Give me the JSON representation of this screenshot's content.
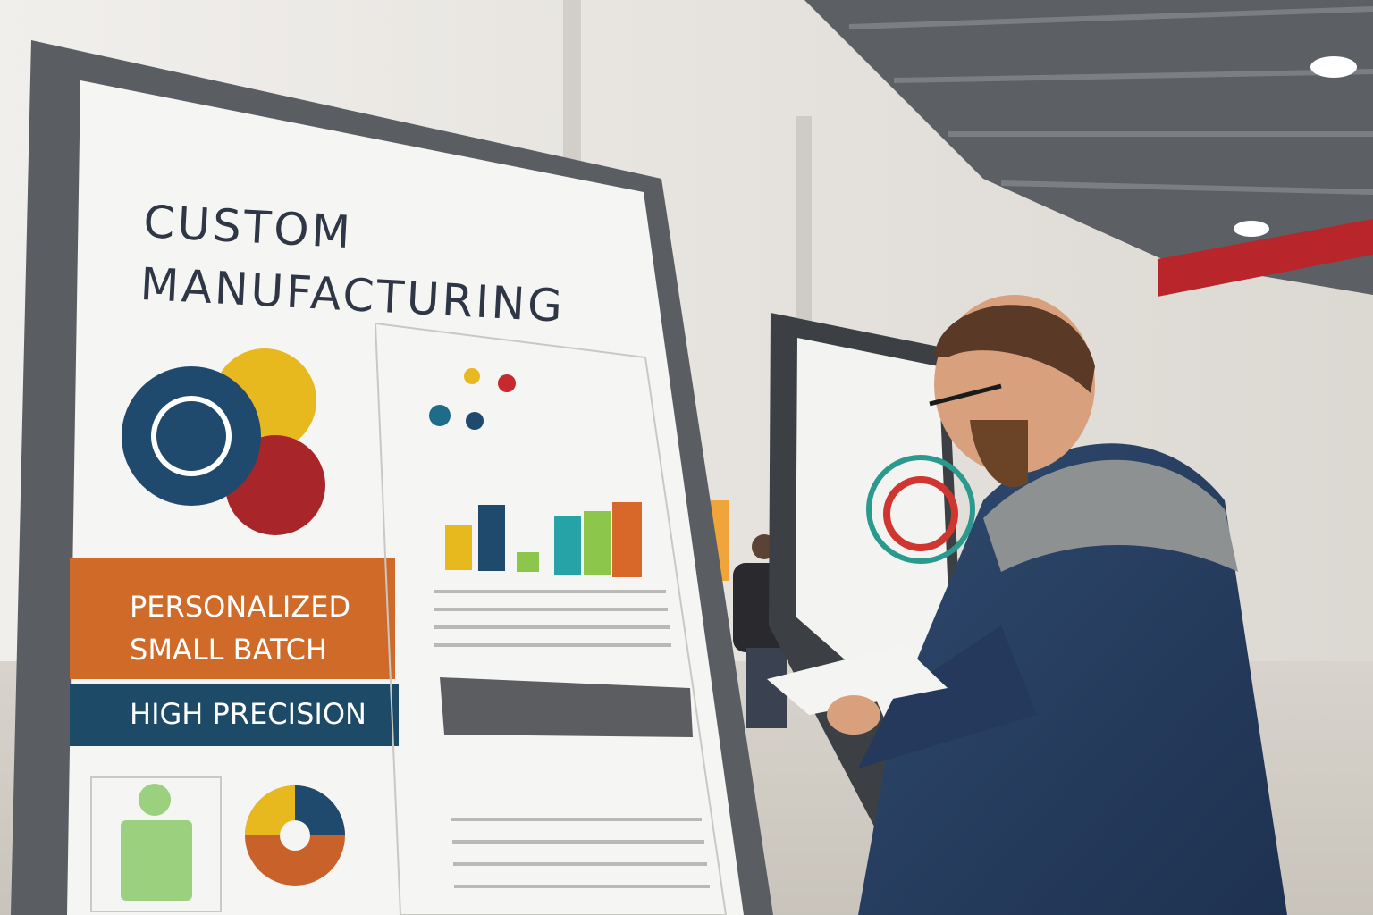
{
  "poster": {
    "title_lines": [
      "CUSTOM",
      "MANUFACTURING"
    ],
    "banner_orange_lines": [
      "PERSONALIZED",
      "SMALL BATCH"
    ],
    "banner_blue": "HIGH PRECISION"
  }
}
